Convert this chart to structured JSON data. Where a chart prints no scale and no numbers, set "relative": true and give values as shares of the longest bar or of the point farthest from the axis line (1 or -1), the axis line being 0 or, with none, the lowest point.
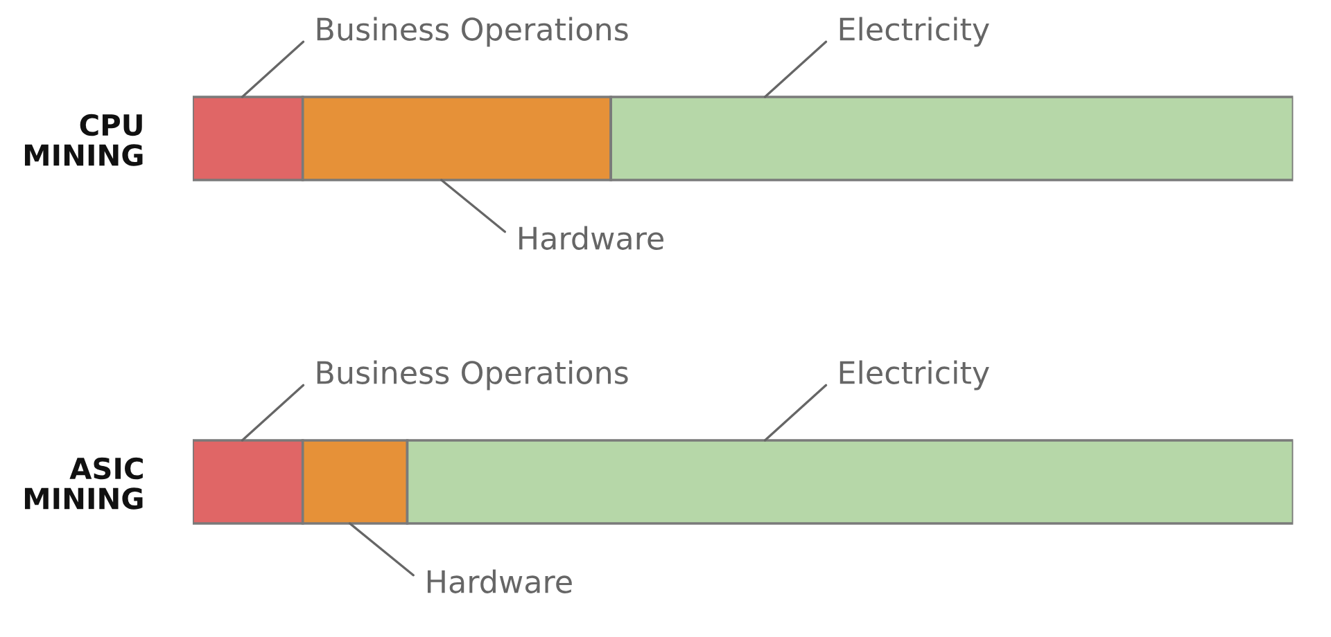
{
  "chart_data": {
    "type": "bar",
    "orientation": "horizontal",
    "stacked": true,
    "relative": true,
    "categories": [
      "CPU\nMINING",
      "ASIC\nMINING"
    ],
    "series": [
      {
        "name": "Business Operations",
        "color": "#e06666",
        "values": [
          0.1,
          0.1
        ]
      },
      {
        "name": "Hardware",
        "color": "#e69138",
        "values": [
          0.28,
          0.095
        ]
      },
      {
        "name": "Electricity",
        "color": "#b6d7a8",
        "values": [
          0.62,
          0.805
        ]
      }
    ]
  }
}
